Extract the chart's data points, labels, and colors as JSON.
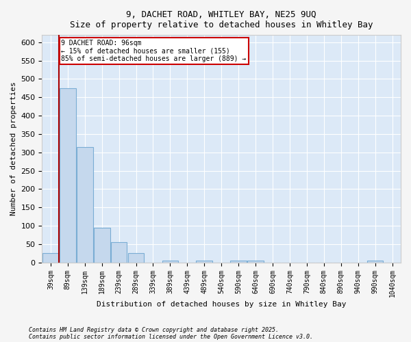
{
  "title_line1": "9, DACHET ROAD, WHITLEY BAY, NE25 9UQ",
  "title_line2": "Size of property relative to detached houses in Whitley Bay",
  "xlabel": "Distribution of detached houses by size in Whitley Bay",
  "ylabel": "Number of detached properties",
  "categories": [
    "39sqm",
    "89sqm",
    "139sqm",
    "189sqm",
    "239sqm",
    "289sqm",
    "339sqm",
    "389sqm",
    "439sqm",
    "489sqm",
    "540sqm",
    "590sqm",
    "640sqm",
    "690sqm",
    "740sqm",
    "790sqm",
    "840sqm",
    "890sqm",
    "940sqm",
    "990sqm",
    "1040sqm"
  ],
  "values": [
    25,
    475,
    315,
    95,
    55,
    25,
    0,
    5,
    0,
    5,
    0,
    5,
    5,
    0,
    0,
    0,
    0,
    0,
    0,
    5,
    0
  ],
  "bar_color": "#c5d8ed",
  "bar_edgecolor": "#7aadd4",
  "annotation_text": "9 DACHET ROAD: 96sqm\n← 15% of detached houses are smaller (155)\n85% of semi-detached houses are larger (889) →",
  "ylim": [
    0,
    620
  ],
  "yticks": [
    0,
    50,
    100,
    150,
    200,
    250,
    300,
    350,
    400,
    450,
    500,
    550,
    600
  ],
  "footer1": "Contains HM Land Registry data © Crown copyright and database right 2025.",
  "footer2": "Contains public sector information licensed under the Open Government Licence v3.0.",
  "fig_bg_color": "#f5f5f5",
  "plot_bg_color": "#dce9f7"
}
